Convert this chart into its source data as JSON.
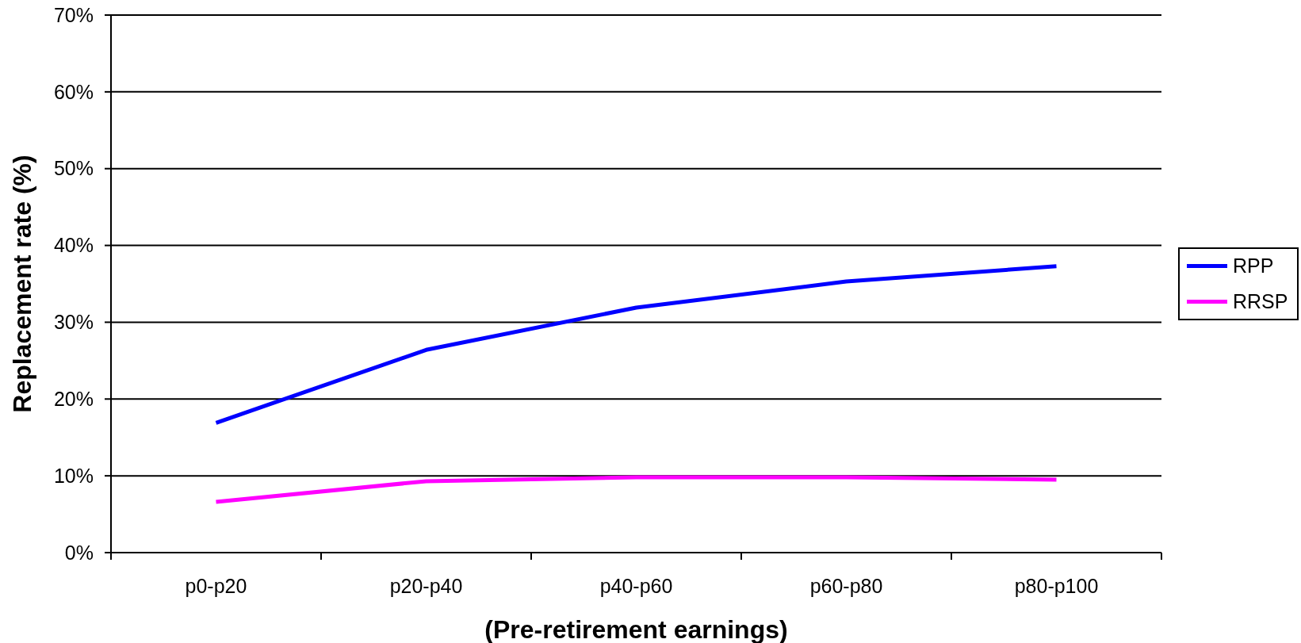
{
  "chart_data": {
    "type": "line",
    "xlabel": "(Pre-retirement earnings)",
    "ylabel": "Replacement rate (%)",
    "categories": [
      "p0-p20",
      "p20-p40",
      "p40-p60",
      "p60-p80",
      "p80-p100"
    ],
    "series": [
      {
        "name": "RPP",
        "color": "#0000ff",
        "values": [
          16.9,
          26.4,
          31.9,
          35.3,
          37.3
        ]
      },
      {
        "name": "RRSP",
        "color": "#ff00ff",
        "values": [
          6.6,
          9.3,
          9.8,
          9.8,
          9.5
        ]
      }
    ],
    "ylim": [
      0,
      70
    ],
    "yticks": [
      {
        "value": 0,
        "label": "0%"
      },
      {
        "value": 10,
        "label": "10%"
      },
      {
        "value": 20,
        "label": "20%"
      },
      {
        "value": 30,
        "label": "30%"
      },
      {
        "value": 40,
        "label": "40%"
      },
      {
        "value": 50,
        "label": "50%"
      },
      {
        "value": 60,
        "label": "60%"
      },
      {
        "value": 70,
        "label": "70%"
      }
    ],
    "grid": "y",
    "legend": "right",
    "line_style": "solid"
  }
}
